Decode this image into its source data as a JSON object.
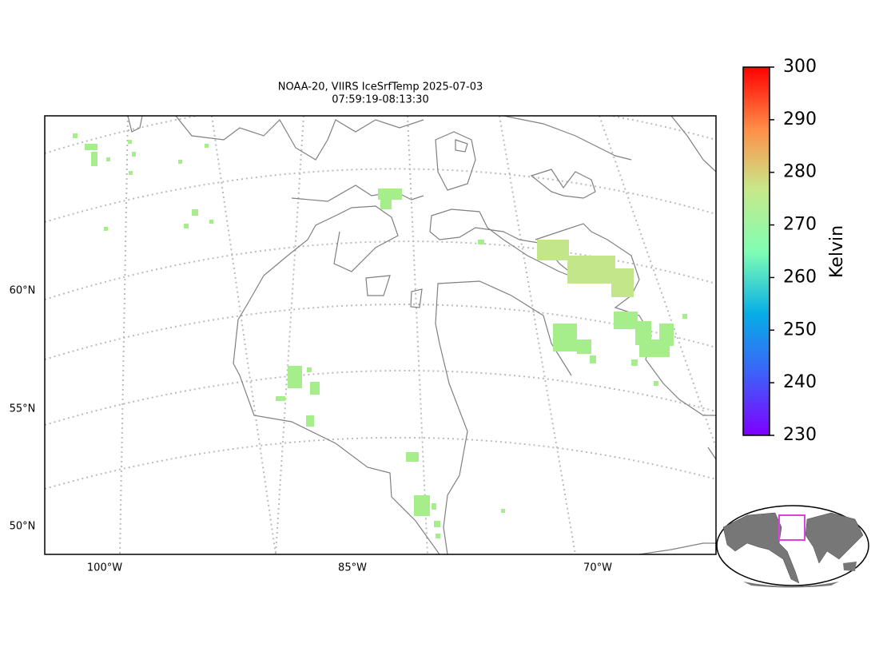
{
  "map": {
    "title_lines": [
      "NOAA-20, VIIRS IceSrfTemp 2025-07-03",
      "07:59:19-08:13:30"
    ],
    "lat_labels": [
      "60°N",
      "55°N",
      "50°N"
    ],
    "lon_labels": [
      "100°W",
      "85°W",
      "70°W"
    ],
    "colorbar": {
      "label": "Kelvin",
      "lim": [
        230,
        300
      ],
      "ticks": [
        230,
        240,
        250,
        260,
        270,
        280,
        290,
        300
      ]
    }
  }
}
